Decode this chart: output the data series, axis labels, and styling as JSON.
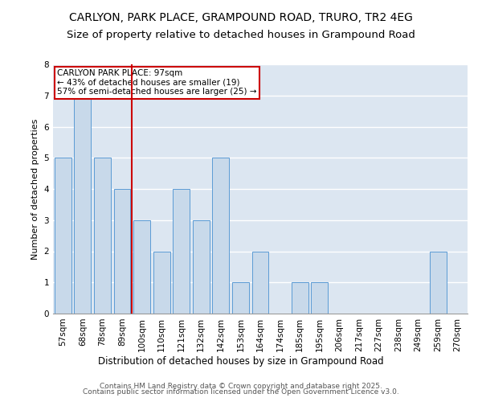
{
  "title": "CARLYON, PARK PLACE, GRAMPOUND ROAD, TRURO, TR2 4EG",
  "subtitle": "Size of property relative to detached houses in Grampound Road",
  "xlabel": "Distribution of detached houses by size in Grampound Road",
  "ylabel": "Number of detached properties",
  "footer_line1": "Contains HM Land Registry data © Crown copyright and database right 2025.",
  "footer_line2": "Contains public sector information licensed under the Open Government Licence v3.0.",
  "annotation_title": "CARLYON PARK PLACE: 97sqm",
  "annotation_line2": "← 43% of detached houses are smaller (19)",
  "annotation_line3": "57% of semi-detached houses are larger (25) →",
  "bar_color": "#c8d9ea",
  "bar_edge_color": "#5b9bd5",
  "vline_color": "#cc0000",
  "annotation_box_edgecolor": "#cc0000",
  "background_color": "#dce6f1",
  "categories": [
    "57sqm",
    "68sqm",
    "78sqm",
    "89sqm",
    "100sqm",
    "110sqm",
    "121sqm",
    "132sqm",
    "142sqm",
    "153sqm",
    "164sqm",
    "174sqm",
    "185sqm",
    "195sqm",
    "206sqm",
    "217sqm",
    "227sqm",
    "238sqm",
    "249sqm",
    "259sqm",
    "270sqm"
  ],
  "values": [
    5,
    7,
    5,
    4,
    3,
    2,
    4,
    3,
    5,
    1,
    2,
    0,
    1,
    1,
    0,
    0,
    0,
    0,
    0,
    2,
    0
  ],
  "ylim": [
    0,
    8
  ],
  "yticks": [
    0,
    1,
    2,
    3,
    4,
    5,
    6,
    7,
    8
  ],
  "vline_index": 3.5,
  "title_fontsize": 10,
  "subtitle_fontsize": 9.5,
  "xlabel_fontsize": 8.5,
  "ylabel_fontsize": 8,
  "tick_fontsize": 7.5,
  "annotation_fontsize": 7.5,
  "footer_fontsize": 6.5
}
